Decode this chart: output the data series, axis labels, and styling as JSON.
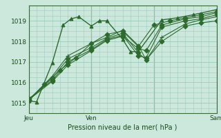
{
  "background_color": "#cce8dc",
  "grid_color": "#99ccbb",
  "line_color": "#2d6a2d",
  "xlabel": "Pression niveau de la mer( hPa )",
  "ylim": [
    1014.6,
    1019.7
  ],
  "xlim": [
    0,
    12
  ],
  "xtick_positions": [
    0,
    4,
    8,
    12
  ],
  "xtick_labels": [
    "Jeu",
    "Ven",
    "",
    "Sam"
  ],
  "ytick_positions": [
    1015,
    1016,
    1017,
    1018,
    1019
  ],
  "ytick_labels": [
    "1015",
    "1016",
    "1017",
    "1018",
    "1019"
  ],
  "series": [
    [
      0.0,
      1015.1,
      0.5,
      1015.05,
      1.5,
      1016.95,
      2.2,
      1018.8,
      2.7,
      1019.1,
      3.2,
      1019.2,
      4.0,
      1018.75,
      4.5,
      1019.0,
      5.0,
      1019.0,
      6.0,
      1018.1,
      6.5,
      1017.5,
      7.0,
      1017.5,
      8.5,
      1019.05,
      9.5,
      1019.15,
      10.5,
      1019.3,
      12.0,
      1019.55
    ],
    [
      0.0,
      1015.15,
      1.5,
      1016.3,
      2.5,
      1017.3,
      4.0,
      1017.9,
      5.0,
      1018.2,
      6.0,
      1018.55,
      7.0,
      1017.8,
      7.5,
      1017.1,
      8.5,
      1018.2,
      10.0,
      1018.85,
      11.0,
      1019.05,
      12.0,
      1019.2
    ],
    [
      0.0,
      1015.15,
      1.5,
      1016.2,
      2.5,
      1017.15,
      4.0,
      1017.7,
      5.0,
      1018.15,
      6.0,
      1018.4,
      7.0,
      1017.45,
      7.5,
      1017.1,
      8.5,
      1018.0,
      10.0,
      1018.75,
      11.0,
      1018.9,
      12.0,
      1019.0
    ],
    [
      0.0,
      1015.2,
      1.5,
      1016.1,
      2.5,
      1017.0,
      4.0,
      1017.6,
      5.0,
      1018.1,
      6.0,
      1018.3,
      7.0,
      1017.3,
      7.5,
      1017.2,
      8.5,
      1018.7,
      10.0,
      1019.0,
      11.0,
      1019.1,
      12.0,
      1019.3
    ],
    [
      0.0,
      1015.15,
      1.5,
      1016.05,
      2.5,
      1016.85,
      4.0,
      1017.55,
      5.0,
      1018.05,
      6.0,
      1018.25,
      7.0,
      1017.65,
      7.5,
      1017.55,
      8.5,
      1018.8,
      10.0,
      1019.1,
      11.0,
      1019.2,
      12.0,
      1019.4
    ],
    [
      0.0,
      1015.1,
      1.0,
      1015.9,
      2.0,
      1016.6,
      3.0,
      1017.2,
      4.0,
      1017.9,
      5.0,
      1018.35,
      6.0,
      1018.5,
      7.0,
      1017.75,
      8.0,
      1018.8,
      9.0,
      1019.0,
      10.0,
      1019.15,
      11.0,
      1019.3,
      12.0,
      1019.45
    ]
  ],
  "vline_positions": [
    0,
    4,
    8,
    12
  ]
}
